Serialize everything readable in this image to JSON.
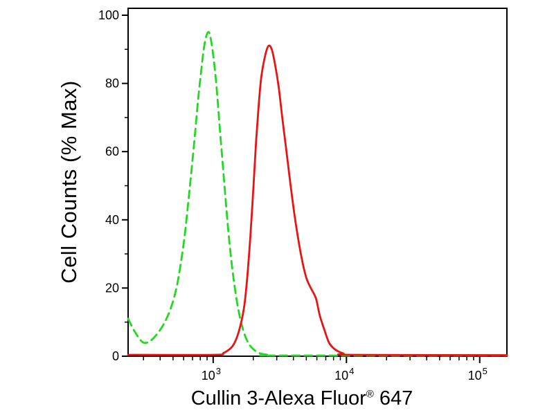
{
  "chart_data": {
    "type": "line",
    "subtype": "flow-cytometry-overlay-histogram",
    "title": "",
    "xlabel": "Cullin 3-Alexa Fluor® 647",
    "xlabel_parts": {
      "pre": "Cullin 3-Alexa Fluor",
      "sup": "®",
      "post": " 647"
    },
    "ylabel": "Cell Counts (% Max)",
    "x_scale": "log",
    "x_range": [
      230,
      160000
    ],
    "ylim": [
      0,
      100
    ],
    "y_ticks": [
      0,
      20,
      40,
      60,
      80,
      100
    ],
    "y_minor_ticks": [
      10,
      30,
      50,
      70,
      90
    ],
    "x_major_ticks": [
      {
        "value": 1000,
        "base": "10",
        "exp": "3"
      },
      {
        "value": 10000,
        "base": "10",
        "exp": "4"
      },
      {
        "value": 100000,
        "base": "10",
        "exp": "5"
      }
    ],
    "grid": false,
    "legend": "none",
    "frame_color": "#000000",
    "background": "#ffffff",
    "series": [
      {
        "name": "control-green-dashed-curve",
        "color": "#21d921",
        "dash": "11 7",
        "width": 2.8,
        "peak_x": 930,
        "peak_y": 95,
        "points": [
          [
            230,
            11
          ],
          [
            260,
            7
          ],
          [
            300,
            4
          ],
          [
            350,
            5
          ],
          [
            420,
            9
          ],
          [
            480,
            14
          ],
          [
            530,
            20
          ],
          [
            570,
            27
          ],
          [
            610,
            35
          ],
          [
            650,
            45
          ],
          [
            690,
            55
          ],
          [
            730,
            65
          ],
          [
            770,
            75
          ],
          [
            810,
            83
          ],
          [
            850,
            90
          ],
          [
            890,
            94
          ],
          [
            930,
            95
          ],
          [
            970,
            92
          ],
          [
            1010,
            87
          ],
          [
            1060,
            79
          ],
          [
            1110,
            69
          ],
          [
            1170,
            58
          ],
          [
            1240,
            46
          ],
          [
            1320,
            34
          ],
          [
            1420,
            23
          ],
          [
            1540,
            14
          ],
          [
            1700,
            7
          ],
          [
            1900,
            3
          ],
          [
            2200,
            1
          ],
          [
            2600,
            0.4
          ],
          [
            3200,
            0.2
          ],
          [
            160000,
            0.2
          ]
        ]
      },
      {
        "name": "cullin3-stained-red-solid-curve",
        "color": "#ea1212",
        "dash": "",
        "width": 2.8,
        "peak_x": 2600,
        "peak_y": 91,
        "points": [
          [
            230,
            0.4
          ],
          [
            1000,
            0.4
          ],
          [
            1200,
            1
          ],
          [
            1400,
            3
          ],
          [
            1550,
            7
          ],
          [
            1700,
            14
          ],
          [
            1800,
            23
          ],
          [
            1900,
            35
          ],
          [
            2000,
            49
          ],
          [
            2100,
            63
          ],
          [
            2200,
            74
          ],
          [
            2300,
            82
          ],
          [
            2450,
            88
          ],
          [
            2600,
            91
          ],
          [
            2750,
            90
          ],
          [
            2900,
            86
          ],
          [
            3100,
            79
          ],
          [
            3300,
            70
          ],
          [
            3600,
            58
          ],
          [
            3900,
            47
          ],
          [
            4200,
            38
          ],
          [
            4600,
            29
          ],
          [
            5000,
            23
          ],
          [
            5400,
            20
          ],
          [
            5900,
            17
          ],
          [
            6300,
            12
          ],
          [
            6800,
            8
          ],
          [
            7400,
            4
          ],
          [
            8200,
            2
          ],
          [
            9500,
            0.8
          ],
          [
            11000,
            0.4
          ],
          [
            160000,
            0.3
          ]
        ]
      }
    ]
  }
}
